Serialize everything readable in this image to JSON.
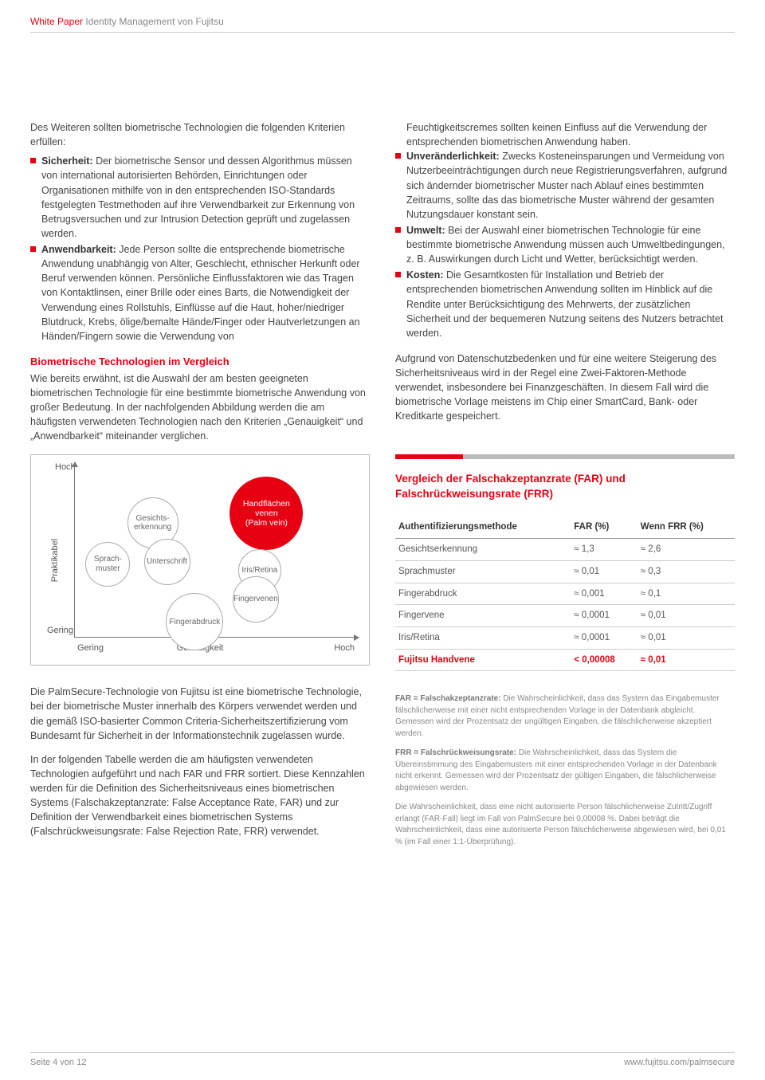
{
  "header": {
    "series": "White Paper",
    "title_gray": "Identity Management von Fujitsu"
  },
  "left": {
    "intro": "Des Weiteren sollten biometrische Technologien die folgenden Kriterien erfüllen:",
    "bullets": [
      {
        "label": "Sicherheit:",
        "text": "Der biometrische Sensor und dessen Algorithmus müssen von international autorisierten Behörden, Einrichtungen oder Organisationen mithilfe von in den entsprechenden ISO-Standards festgelegten Testmethoden auf ihre Verwendbarkeit zur Erkennung von Betrugsversuchen und zur Intrusion Detection geprüft und zugelassen werden."
      },
      {
        "label": "Anwendbarkeit:",
        "text": "Jede Person sollte die entsprechende biometrische Anwendung unabhängig von Alter, Geschlecht, ethnischer Herkunft oder Beruf verwenden können. Persönliche Einflussfaktoren wie das Tragen von Kontaktlinsen, einer Brille oder eines Barts, die Notwendigkeit der Verwendung eines Rollstuhls, Einflüsse auf die Haut, hoher/niedriger Blutdruck, Krebs, ölige/bemalte Hände/Finger oder Hautverletzungen an Händen/Fingern sowie die Verwendung von"
      }
    ],
    "section_heading": "Biometrische Technologien im Vergleich",
    "section_para": "Wie bereits erwähnt, ist die Auswahl der am besten geeigneten biometrischen Technologie für eine bestimmte biometrische Anwendung von großer Bedeutung. In der nachfolgenden Abbildung werden die am häufigsten verwendeten Technologien nach den Kriterien „Genauigkeit“ und „Anwendbarkeit“ miteinander verglichen."
  },
  "right": {
    "continuation": "Feuchtigkeitscremes sollten keinen Einfluss auf die Verwendung der entsprechenden biometrischen Anwendung haben.",
    "bullets": [
      {
        "label": "Unveränderlichkeit:",
        "text": "Zwecks Kosteneinsparungen und Vermeidung von Nutzerbeeinträchtigungen durch neue Registrierungsverfahren, aufgrund sich ändernder biometrischer Muster nach Ablauf eines bestimmten Zeitraums, sollte das das biometrische Muster während der gesamten Nutzungsdauer konstant sein."
      },
      {
        "label": "Umwelt:",
        "text": "Bei der Auswahl einer biometrischen Technologie für eine bestimmte biometrische Anwendung müssen auch Umweltbedingungen, z. B. Auswirkungen durch Licht und Wetter, berücksichtigt werden."
      },
      {
        "label": "Kosten:",
        "text": "Die Gesamtkosten für Installation und Betrieb der entsprechenden biometrischen Anwendung sollten im Hinblick auf die Rendite unter Berücksichtigung des Mehrwerts, der zusätzlichen Sicherheit und der bequemeren Nutzung seitens des Nutzers betrachtet werden."
      }
    ],
    "para2": "Aufgrund von Datenschutzbedenken und für eine weitere Steigerung des Sicherheitsniveaus wird in der Regel eine Zwei-Faktoren-Methode verwendet, insbesondere bei Finanzgeschäften. In diesem Fall wird die biometrische Vorlage meistens im Chip einer SmartCard, Bank- oder Kreditkarte gespeichert."
  },
  "chart": {
    "y_label": "Praktikabel",
    "x_label": "Genauigkeit",
    "high": "Hoch",
    "low": "Gering",
    "bubbles": [
      {
        "name": "gesichtserkennung",
        "label": "Gesichts-\nerkennung",
        "x": 18,
        "y": 18,
        "d": 64,
        "highlight": false
      },
      {
        "name": "sprachmuster",
        "label": "Sprach-\nmuster",
        "x": 3,
        "y": 44,
        "d": 56,
        "highlight": false
      },
      {
        "name": "unterschrift",
        "label": "Unterschrift",
        "x": 24,
        "y": 42,
        "d": 58,
        "highlight": false
      },
      {
        "name": "handflaechen",
        "label": "Handflächen\nvenen\n(Palm vein)",
        "x": 55,
        "y": 6,
        "d": 92,
        "highlight": true
      },
      {
        "name": "iris-retina",
        "label": "Iris/Retina",
        "x": 58,
        "y": 48,
        "d": 54,
        "highlight": false
      },
      {
        "name": "fingervenen",
        "label": "Fingervenen",
        "x": 56,
        "y": 64,
        "d": 58,
        "highlight": false
      },
      {
        "name": "fingerabdruck",
        "label": "Fingerabdruck",
        "x": 32,
        "y": 74,
        "d": 72,
        "highlight": false
      }
    ]
  },
  "panel": {
    "title": "Vergleich der Falschakzeptanzrate (FAR) und Falschrückweisungsrate (FRR)",
    "columns": [
      "Authentifizierungsmethode",
      "FAR (%)",
      "Wenn FRR (%)"
    ],
    "rows": [
      {
        "method": "Gesichtserkennung",
        "far": "≈ 1,3",
        "frr": "≈ 2,6",
        "highlight": false
      },
      {
        "method": "Sprachmuster",
        "far": "≈ 0,01",
        "frr": "≈ 0,3",
        "highlight": false
      },
      {
        "method": "Fingerabdruck",
        "far": "≈ 0,001",
        "frr": "≈ 0,1",
        "highlight": false
      },
      {
        "method": "Fingervene",
        "far": "≈ 0,0001",
        "frr": "≈ 0,01",
        "highlight": false
      },
      {
        "method": "Iris/Retina",
        "far": "≈ 0,0001",
        "frr": "≈ 0,01",
        "highlight": false
      },
      {
        "method": "Fujitsu Handvene",
        "far": "< 0,00008",
        "frr": "≈ 0,01",
        "highlight": true
      }
    ]
  },
  "left_below": {
    "p1": "Die PalmSecure-Technologie von Fujitsu ist eine biometrische Technologie, bei der biometrische Muster innerhalb des Körpers verwendet werden und die gemäß ISO-basierter Common Criteria-Sicherheitszertifizierung vom Bundesamt für Sicherheit in der Informationstechnik zugelassen wurde.",
    "p2": "In der folgenden Tabelle werden die am häufigsten verwendeten Technologien aufgeführt und nach FAR und FRR sortiert. Diese Kennzahlen werden für die Definition des Sicherheitsniveaus eines biometrischen Systems (Falschakzeptanzrate: False Acceptance Rate, FAR) und zur Definition der Verwendbarkeit eines biometrischen Systems (Falschrückweisungsrate: False Rejection Rate, FRR) verwendet."
  },
  "footnotes": {
    "f1_label": "FAR = Falschakzeptanzrate:",
    "f1": "Die Wahrscheinlichkeit, dass das System das Eingabemuster fälschlicherweise mit einer nicht entsprechenden Vorlage in der Datenbank abgleicht. Gemessen wird der Prozentsatz der ungültigen Eingaben, die fälschlicherweise akzeptiert werden.",
    "f2_label": "FRR = Falschrückweisungsrate:",
    "f2": "Die Wahrscheinlichkeit, dass das System die Übereinstimmung des Eingabemusters mit einer entsprechenden Vorlage in der Datenbank nicht erkennt. Gemessen wird der Prozentsatz der gültigen Eingaben, die fälschlicherweise abgewiesen werden.",
    "f3": "Die Wahrscheinlichkeit, dass eine nicht autorisierte Person fälschlicherweise Zutritt/Zugriff erlangt (FAR-Fall) liegt im Fall von PalmSecure bei 0,00008 %. Dabei beträgt die Wahrscheinlichkeit, dass eine autorisierte Person fälschlicherweise abgewiesen wird, bei 0,01 % (im Fall einer 1:1-Überprüfung)."
  },
  "footer": {
    "page": "Seite 4 von 12",
    "url": "www.fujitsu.com/palmsecure"
  }
}
